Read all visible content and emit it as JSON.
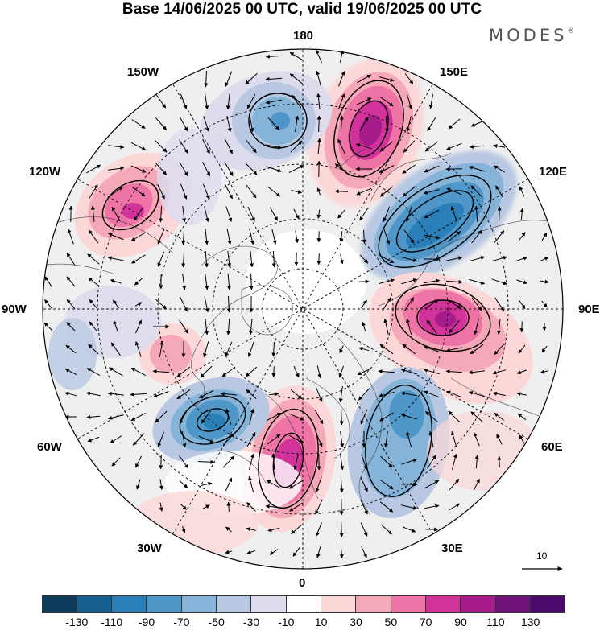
{
  "title": "Base 14/06/2025 00 UTC, valid 19/06/2025 00 UTC",
  "brand": {
    "name": "MODES",
    "mark": "®"
  },
  "map": {
    "projection": "north-polar-stereographic",
    "longitude_labels": {
      "lon_180": "180",
      "lon_150e": "150E",
      "lon_120e": "120E",
      "lon_90e": "90E",
      "lon_60e": "60E",
      "lon_30e": "30E",
      "lon_0": "0",
      "lon_30w": "30W",
      "lon_60w": "60W",
      "lon_90w": "90W",
      "lon_120w": "120W",
      "lon_150w": "150W"
    },
    "anomalies": [
      {
        "lon": 155,
        "sign": "positive",
        "peak": 110
      },
      {
        "lon": 130,
        "sign": "negative",
        "peak": -90
      },
      {
        "lon": 90,
        "sign": "positive",
        "peak": 110
      },
      {
        "lon": 40,
        "sign": "negative",
        "peak": -50
      },
      {
        "lon": 5,
        "sign": "positive",
        "peak": 90
      },
      {
        "lon": -35,
        "sign": "negative",
        "peak": -90
      },
      {
        "lon": -70,
        "sign": "positive",
        "peak": 30
      },
      {
        "lon": -125,
        "sign": "positive",
        "peak": 90
      },
      {
        "lon": -170,
        "sign": "negative",
        "peak": -70
      }
    ]
  },
  "reference_vector": {
    "label": "10"
  },
  "colorbar": {
    "ticks": [
      "-130",
      "-110",
      "-90",
      "-70",
      "-50",
      "-30",
      "-10",
      "10",
      "30",
      "50",
      "70",
      "90",
      "110",
      "130"
    ],
    "colors": [
      "#0d3b5c",
      "#155f91",
      "#2a7fb8",
      "#4f97c8",
      "#86b3d8",
      "#b8c8e2",
      "#dcdced",
      "#ffffff",
      "#fbd7d7",
      "#f5a9b8",
      "#ee74a6",
      "#d2339a",
      "#a61c8a",
      "#6e1179",
      "#4b0a6b"
    ]
  }
}
